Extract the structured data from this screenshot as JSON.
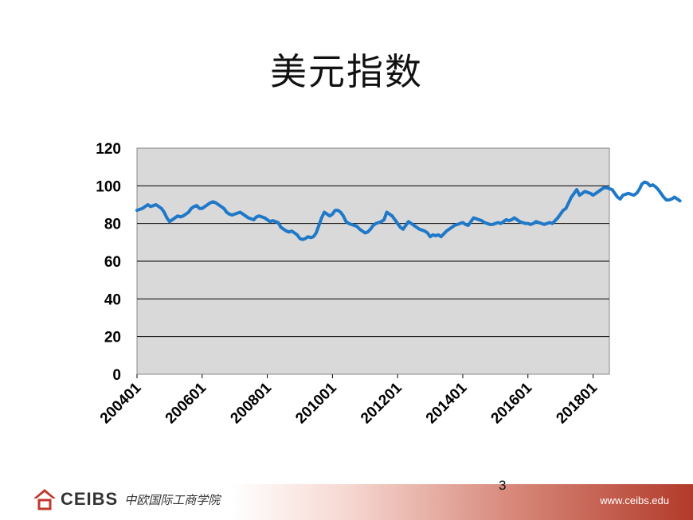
{
  "slide": {
    "title": "美元指数",
    "page_number": "3",
    "footer": {
      "logo_text": "CEIBS",
      "logo_cn": "中欧国际工商学院",
      "url": "www.ceibs.edu",
      "accent_color": "#b23a2a"
    }
  },
  "chart_data": {
    "type": "line",
    "title": "",
    "xlabel": "",
    "ylabel": "",
    "ylim": [
      0,
      120
    ],
    "yticks": [
      "0",
      "20",
      "40",
      "60",
      "80",
      "100",
      "120"
    ],
    "xticks": [
      "200401",
      "200601",
      "200801",
      "201001",
      "201201",
      "201401",
      "201601",
      "201801"
    ],
    "x_start": "200401",
    "grid": true,
    "legend": "none",
    "colors": {
      "line": "#1f78c8",
      "plot_bg": "#d9d9d9"
    },
    "series": [
      {
        "values": [
          87,
          87.5,
          88,
          89,
          90,
          89,
          89.5,
          90,
          89,
          88,
          86,
          83,
          81,
          82,
          83,
          84,
          83.5,
          84,
          85,
          86,
          88,
          89,
          89.5,
          88,
          88,
          89,
          90,
          91,
          91.5,
          91,
          90,
          89,
          88,
          86,
          85,
          84.5,
          85,
          85.5,
          86,
          85,
          84,
          83,
          82.5,
          82,
          83.5,
          84,
          83.5,
          83,
          82,
          81,
          81.5,
          81,
          80.5,
          78,
          77,
          76,
          75.5,
          76,
          75,
          74,
          72,
          71.5,
          72,
          73,
          72.5,
          73,
          75,
          79,
          83,
          86,
          85,
          84,
          85,
          87,
          87,
          86,
          84,
          81,
          80,
          79.5,
          79,
          78.5,
          77,
          76,
          75,
          75.5,
          77,
          79,
          80,
          80.5,
          81,
          82,
          86,
          85,
          84,
          82,
          80,
          78,
          77,
          79,
          81,
          80,
          79,
          78,
          77,
          76.5,
          76,
          75,
          73,
          74,
          73.5,
          74,
          73,
          74.5,
          76,
          77,
          78,
          79,
          79.5,
          80,
          80.5,
          79.5,
          79,
          81,
          83,
          82.5,
          82,
          81.5,
          80.5,
          80,
          79.5,
          79.5,
          80,
          80.5,
          80,
          81,
          82,
          81.5,
          82,
          83,
          82,
          81,
          80.5,
          80,
          80,
          79.5,
          80,
          81,
          80.5,
          80,
          79.5,
          80,
          80.5,
          80,
          81.5,
          83,
          85,
          87,
          88,
          91,
          94,
          96,
          98,
          95,
          96,
          97,
          96.5,
          96,
          95,
          96,
          97,
          98,
          99,
          99,
          98.5,
          98,
          96,
          94,
          93,
          95,
          95.5,
          96,
          95.5,
          95,
          96,
          98,
          101,
          102,
          101.5,
          100,
          100.5,
          99.5,
          98,
          96,
          94,
          92.5,
          92.5,
          93,
          94,
          93,
          92
        ]
      }
    ]
  }
}
